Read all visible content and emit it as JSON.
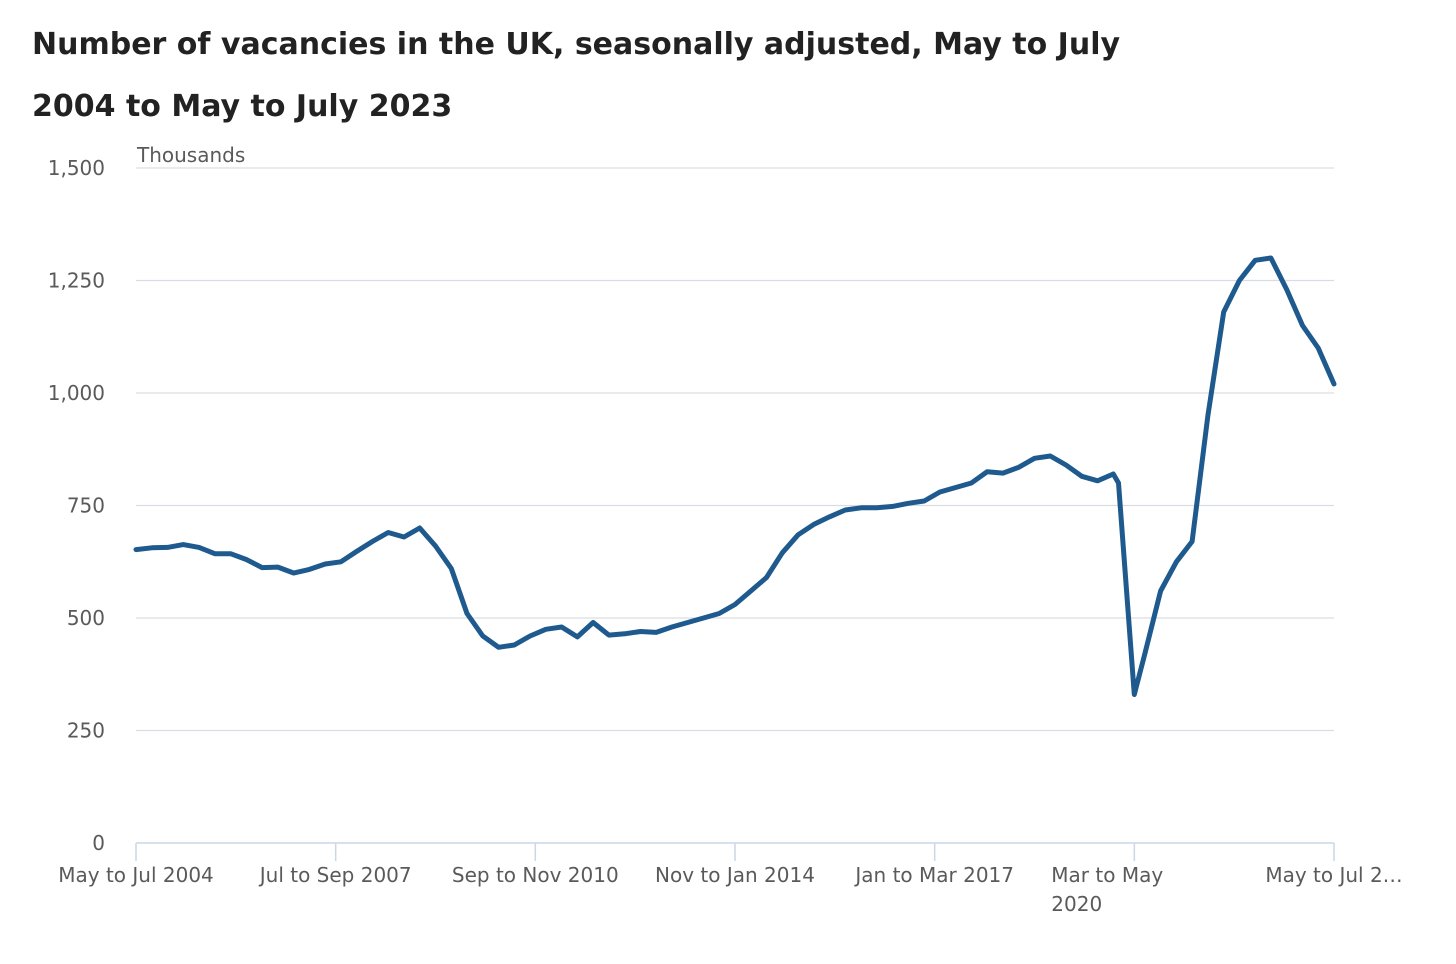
{
  "title": "Number of vacancies in the UK, seasonally adjusted, May to July 2004 to May to July 2023",
  "chart_data": {
    "type": "line",
    "title": "Number of vacancies in the UK, seasonally adjusted, May to July 2004 to May to July 2023",
    "ylabel": "Thousands",
    "xlabel": "",
    "ylim": [
      0,
      1500
    ],
    "y_ticks": [
      "0",
      "250",
      "500",
      "750",
      "1,000",
      "1,250",
      "1,500"
    ],
    "x_ticks": [
      {
        "label": "May to Jul 2004",
        "lines": [
          "May to Jul 2004"
        ],
        "year": 2004.5
      },
      {
        "label": "Jul to Sep 2007",
        "lines": [
          "Jul to Sep 2007"
        ],
        "year": 2007.667
      },
      {
        "label": "Sep to Nov 2010",
        "lines": [
          "Sep to Nov 2010"
        ],
        "year": 2010.833
      },
      {
        "label": "Nov to Jan 2014",
        "lines": [
          "Nov to Jan 2014"
        ],
        "year": 2014.0
      },
      {
        "label": "Jan to Mar 2017",
        "lines": [
          "Jan to Mar 2017"
        ],
        "year": 2017.167
      },
      {
        "label": "Mar to May 2020",
        "lines": [
          "Mar to May",
          "2020"
        ],
        "year": 2020.333
      },
      {
        "label": "May to Jul 2…",
        "lines": [
          "May to Jul 2…"
        ],
        "year": 2023.5
      }
    ],
    "grid": "horizontal",
    "legend": "none",
    "series": [
      {
        "color": "#1f5a8e",
        "points": [
          [
            2004.5,
            652
          ],
          [
            2004.75,
            656
          ],
          [
            2005.0,
            657
          ],
          [
            2005.25,
            663
          ],
          [
            2005.5,
            657
          ],
          [
            2005.75,
            643
          ],
          [
            2006.0,
            643
          ],
          [
            2006.25,
            630
          ],
          [
            2006.5,
            612
          ],
          [
            2006.75,
            613
          ],
          [
            2007.0,
            600
          ],
          [
            2007.25,
            608
          ],
          [
            2007.5,
            620
          ],
          [
            2007.75,
            625
          ],
          [
            2008.0,
            648
          ],
          [
            2008.25,
            670
          ],
          [
            2008.5,
            690
          ],
          [
            2008.75,
            680
          ],
          [
            2009.0,
            700
          ],
          [
            2009.25,
            660
          ],
          [
            2009.5,
            610
          ],
          [
            2009.75,
            510
          ],
          [
            2010.0,
            460
          ],
          [
            2010.25,
            435
          ],
          [
            2010.5,
            440
          ],
          [
            2010.75,
            460
          ],
          [
            2011.0,
            475
          ],
          [
            2011.25,
            480
          ],
          [
            2011.5,
            458
          ],
          [
            2011.75,
            490
          ],
          [
            2012.0,
            462
          ],
          [
            2012.25,
            465
          ],
          [
            2012.5,
            470
          ],
          [
            2012.75,
            468
          ],
          [
            2013.0,
            480
          ],
          [
            2013.25,
            490
          ],
          [
            2013.5,
            500
          ],
          [
            2013.75,
            510
          ],
          [
            2014.0,
            530
          ],
          [
            2014.25,
            560
          ],
          [
            2014.5,
            590
          ],
          [
            2014.75,
            645
          ],
          [
            2015.0,
            685
          ],
          [
            2015.25,
            708
          ],
          [
            2015.5,
            725
          ],
          [
            2015.75,
            740
          ],
          [
            2016.0,
            745
          ],
          [
            2016.25,
            745
          ],
          [
            2016.5,
            748
          ],
          [
            2016.75,
            755
          ],
          [
            2017.0,
            760
          ],
          [
            2017.25,
            780
          ],
          [
            2017.5,
            790
          ],
          [
            2017.75,
            800
          ],
          [
            2018.0,
            825
          ],
          [
            2018.25,
            822
          ],
          [
            2018.5,
            835
          ],
          [
            2018.75,
            855
          ],
          [
            2019.0,
            860
          ],
          [
            2019.25,
            840
          ],
          [
            2019.5,
            815
          ],
          [
            2019.75,
            805
          ],
          [
            2020.0,
            820
          ],
          [
            2020.083,
            800
          ],
          [
            2020.333,
            330
          ],
          [
            2020.5,
            420
          ],
          [
            2020.75,
            560
          ],
          [
            2021.0,
            625
          ],
          [
            2021.25,
            670
          ],
          [
            2021.5,
            950
          ],
          [
            2021.75,
            1180
          ],
          [
            2022.0,
            1250
          ],
          [
            2022.25,
            1295
          ],
          [
            2022.5,
            1300
          ],
          [
            2022.75,
            1230
          ],
          [
            2023.0,
            1150
          ],
          [
            2023.25,
            1100
          ],
          [
            2023.5,
            1020
          ]
        ]
      }
    ]
  }
}
